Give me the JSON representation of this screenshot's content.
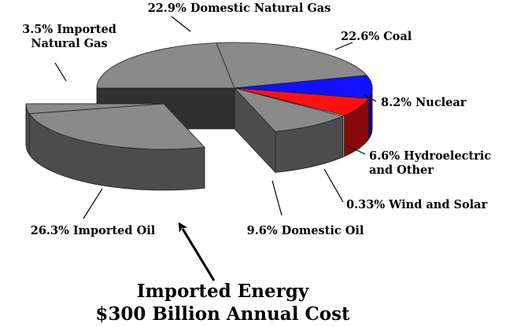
{
  "chart_data": {
    "type": "pie",
    "style": "3d-exploded",
    "slices": [
      {
        "label_lines": [
          "22.9% Domestic Natural Gas"
        ],
        "value": 22.9,
        "color": "#8a8a8a",
        "exploded": false
      },
      {
        "label_lines": [
          "22.6% Coal"
        ],
        "value": 22.6,
        "color": "#8a8a8a",
        "exploded": false
      },
      {
        "label_lines": [
          "8.2% Nuclear"
        ],
        "value": 8.2,
        "color": "#1010ff",
        "exploded": false
      },
      {
        "label_lines": [
          "6.6% Hydroelectric",
          "and Other"
        ],
        "value": 6.6,
        "color": "#ff1010",
        "exploded": false
      },
      {
        "label_lines": [
          "0.33% Wind and Solar"
        ],
        "value": 0.33,
        "color": "#ffffff",
        "exploded": false
      },
      {
        "label_lines": [
          "9.6% Domestic Oil"
        ],
        "value": 9.6,
        "color": "#8a8a8a",
        "exploded": false
      },
      {
        "label_lines": [
          "26.3% Imported Oil"
        ],
        "value": 26.3,
        "color": "#8a8a8a",
        "exploded": true
      },
      {
        "label_lines": [
          "3.5% Imported",
          "Natural Gas"
        ],
        "value": 3.5,
        "color": "#8a8a8a",
        "exploded": true
      }
    ],
    "annotation_lines": [
      "Imported Energy",
      "$300 Billion Annual Cost"
    ]
  }
}
